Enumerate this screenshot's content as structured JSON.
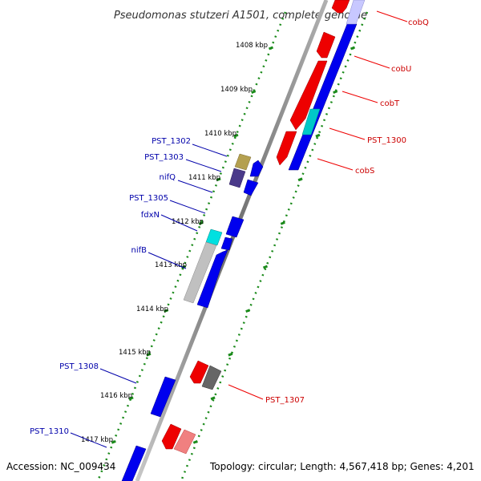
{
  "title": "Pseudomonas stutzeri A1501, complete genome",
  "footer": {
    "accession": "Accession: NC_009434",
    "topology": "Topology: circular; Length: 4,567,418 bp; Genes: 4,201"
  },
  "colors": {
    "forward": "#0000ee",
    "reverse": "#ee0000",
    "label_forward": "#0000aa",
    "label_reverse": "#cc0000",
    "backbone": "#808080",
    "tick": "#1a8a1a"
  },
  "ticks": [
    "1408 kbp",
    "1409 kbp",
    "1410 kbp",
    "1411 kbp",
    "1412 kbp",
    "1413 kbp",
    "1414 kbp",
    "1415 kbp",
    "1416 kbp",
    "1417 kbp"
  ],
  "labels_forward": [
    "PST_1302",
    "PST_1303",
    "nifQ",
    "PST_1305",
    "fdxN",
    "nifB",
    "PST_1308",
    "PST_1310"
  ],
  "labels_reverse": [
    "cobQ",
    "cobU",
    "cobT",
    "PST_1300",
    "cobS",
    "PST_1307"
  ]
}
